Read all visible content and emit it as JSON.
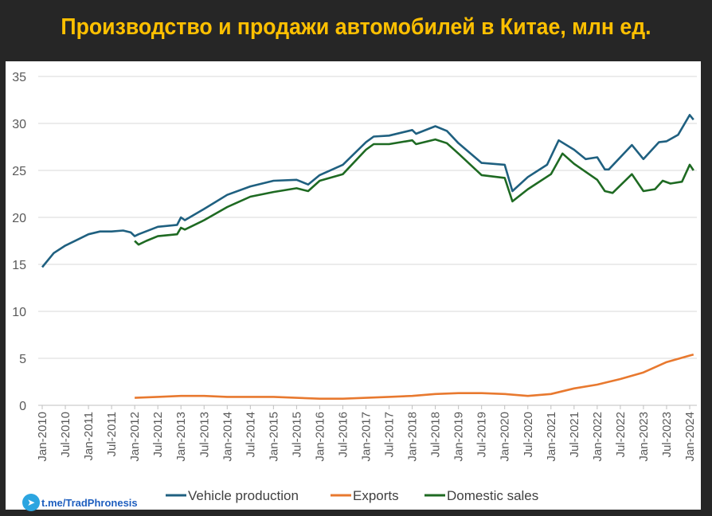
{
  "title": "Производство и продажи автомобилей в Китае, млн ед.",
  "link": "t.me/TradPhronesis",
  "chart_data": {
    "type": "line",
    "title": "Производство и продажи автомобилей в Китае, млн ед.",
    "ylim": [
      0,
      35
    ],
    "yticks": [
      0,
      5,
      10,
      15,
      20,
      25,
      30,
      35
    ],
    "xlim": [
      "2010-01",
      "2024-02"
    ],
    "xtick_labels": [
      "Jan-2010",
      "Jul-2010",
      "Jan-2011",
      "Jul-2011",
      "Jan-2012",
      "Jul-2012",
      "Jan-2013",
      "Jul-2013",
      "Jan-2014",
      "Jul-2014",
      "Jan-2015",
      "Jul-2015",
      "Jan-2016",
      "Jul-2016",
      "Jan-2017",
      "Jul-2017",
      "Jan-2018",
      "Jul-2018",
      "Jan-2019",
      "Jul-2019",
      "Jan-2020",
      "Jul-2020",
      "Jan-2021",
      "Jul-2021",
      "Jan-2022",
      "Jul-2022",
      "Jan-2023",
      "Jul-2023",
      "Jan-2024"
    ],
    "grid": true,
    "legend": "bottom",
    "series": [
      {
        "name": "Vehicle production",
        "color": "#1f6080",
        "points": [
          [
            "2010-01",
            14.7
          ],
          [
            "2010-04",
            16.2
          ],
          [
            "2010-07",
            17.0
          ],
          [
            "2010-10",
            17.6
          ],
          [
            "2011-01",
            18.2
          ],
          [
            "2011-04",
            18.5
          ],
          [
            "2011-07",
            18.5
          ],
          [
            "2011-10",
            18.6
          ],
          [
            "2011-12",
            18.4
          ],
          [
            "2012-01",
            18.0
          ],
          [
            "2012-02",
            18.2
          ],
          [
            "2012-07",
            19.0
          ],
          [
            "2012-12",
            19.2
          ],
          [
            "2013-01",
            20.0
          ],
          [
            "2013-02",
            19.7
          ],
          [
            "2013-07",
            20.9
          ],
          [
            "2014-01",
            22.4
          ],
          [
            "2014-07",
            23.3
          ],
          [
            "2015-01",
            23.9
          ],
          [
            "2015-07",
            24.0
          ],
          [
            "2015-10",
            23.5
          ],
          [
            "2016-01",
            24.5
          ],
          [
            "2016-07",
            25.6
          ],
          [
            "2017-01",
            28.0
          ],
          [
            "2017-03",
            28.6
          ],
          [
            "2017-07",
            28.7
          ],
          [
            "2018-01",
            29.3
          ],
          [
            "2018-02",
            28.9
          ],
          [
            "2018-07",
            29.7
          ],
          [
            "2018-10",
            29.2
          ],
          [
            "2019-01",
            27.9
          ],
          [
            "2019-07",
            25.8
          ],
          [
            "2020-01",
            25.6
          ],
          [
            "2020-03",
            22.8
          ],
          [
            "2020-07",
            24.3
          ],
          [
            "2020-12",
            25.6
          ],
          [
            "2021-03",
            28.2
          ],
          [
            "2021-07",
            27.2
          ],
          [
            "2021-10",
            26.2
          ],
          [
            "2022-01",
            26.4
          ],
          [
            "2022-03",
            25.1
          ],
          [
            "2022-04",
            25.1
          ],
          [
            "2022-10",
            27.7
          ],
          [
            "2023-01",
            26.2
          ],
          [
            "2023-05",
            28.0
          ],
          [
            "2023-07",
            28.1
          ],
          [
            "2023-10",
            28.8
          ],
          [
            "2024-01",
            30.9
          ],
          [
            "2024-02",
            30.4
          ]
        ]
      },
      {
        "name": "Exports",
        "color": "#e8792f",
        "points": [
          [
            "2012-01",
            0.8
          ],
          [
            "2012-07",
            0.9
          ],
          [
            "2013-01",
            1.0
          ],
          [
            "2013-07",
            1.0
          ],
          [
            "2014-01",
            0.9
          ],
          [
            "2015-01",
            0.9
          ],
          [
            "2015-07",
            0.8
          ],
          [
            "2016-01",
            0.7
          ],
          [
            "2016-07",
            0.7
          ],
          [
            "2017-01",
            0.8
          ],
          [
            "2017-07",
            0.9
          ],
          [
            "2018-01",
            1.0
          ],
          [
            "2018-07",
            1.2
          ],
          [
            "2019-01",
            1.3
          ],
          [
            "2019-07",
            1.3
          ],
          [
            "2020-01",
            1.2
          ],
          [
            "2020-07",
            1.0
          ],
          [
            "2021-01",
            1.2
          ],
          [
            "2021-07",
            1.8
          ],
          [
            "2022-01",
            2.2
          ],
          [
            "2022-07",
            2.8
          ],
          [
            "2023-01",
            3.5
          ],
          [
            "2023-07",
            4.6
          ],
          [
            "2024-01",
            5.3
          ],
          [
            "2024-02",
            5.4
          ]
        ]
      },
      {
        "name": "Domestic sales",
        "color": "#1e6a22",
        "points": [
          [
            "2012-01",
            17.5
          ],
          [
            "2012-02",
            17.1
          ],
          [
            "2012-04",
            17.5
          ],
          [
            "2012-07",
            18.0
          ],
          [
            "2012-12",
            18.2
          ],
          [
            "2013-01",
            18.9
          ],
          [
            "2013-02",
            18.7
          ],
          [
            "2013-07",
            19.7
          ],
          [
            "2014-01",
            21.1
          ],
          [
            "2014-07",
            22.2
          ],
          [
            "2015-01",
            22.7
          ],
          [
            "2015-07",
            23.1
          ],
          [
            "2015-10",
            22.8
          ],
          [
            "2016-01",
            23.9
          ],
          [
            "2016-07",
            24.6
          ],
          [
            "2017-01",
            27.2
          ],
          [
            "2017-03",
            27.8
          ],
          [
            "2017-07",
            27.8
          ],
          [
            "2018-01",
            28.2
          ],
          [
            "2018-02",
            27.8
          ],
          [
            "2018-07",
            28.3
          ],
          [
            "2018-10",
            27.9
          ],
          [
            "2019-01",
            26.8
          ],
          [
            "2019-07",
            24.5
          ],
          [
            "2020-01",
            24.2
          ],
          [
            "2020-03",
            21.7
          ],
          [
            "2020-07",
            23.0
          ],
          [
            "2021-01",
            24.6
          ],
          [
            "2021-04",
            26.8
          ],
          [
            "2021-07",
            25.7
          ],
          [
            "2022-01",
            24.0
          ],
          [
            "2022-03",
            22.8
          ],
          [
            "2022-05",
            22.6
          ],
          [
            "2022-10",
            24.6
          ],
          [
            "2023-01",
            22.8
          ],
          [
            "2023-04",
            23.0
          ],
          [
            "2023-06",
            23.9
          ],
          [
            "2023-08",
            23.6
          ],
          [
            "2023-11",
            23.8
          ],
          [
            "2024-01",
            25.6
          ],
          [
            "2024-02",
            25.0
          ]
        ]
      }
    ]
  }
}
